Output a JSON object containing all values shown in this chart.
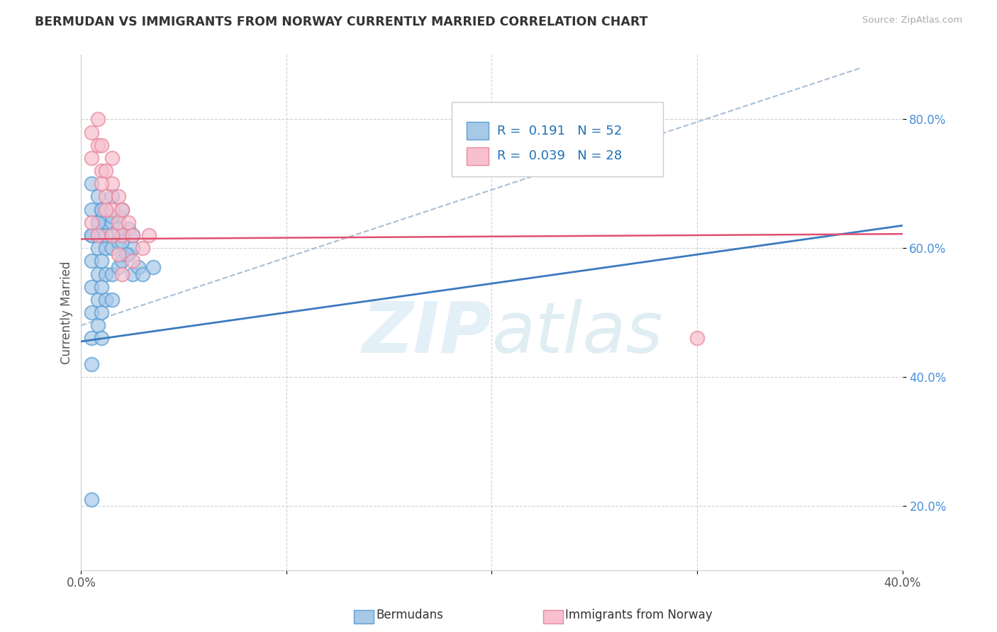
{
  "title": "BERMUDAN VS IMMIGRANTS FROM NORWAY CURRENTLY MARRIED CORRELATION CHART",
  "source": "Source: ZipAtlas.com",
  "ylabel": "Currently Married",
  "xlim": [
    0.0,
    0.4
  ],
  "ylim": [
    0.1,
    0.9
  ],
  "xticks": [
    0.0,
    0.1,
    0.2,
    0.3,
    0.4
  ],
  "xtick_labels": [
    "0.0%",
    "",
    "",
    "",
    "40.0%"
  ],
  "ytick_vals": [
    0.2,
    0.4,
    0.6,
    0.8
  ],
  "ytick_labels": [
    "20.0%",
    "40.0%",
    "60.0%",
    "80.0%"
  ],
  "blue_color": "#a8c8e8",
  "blue_edge_color": "#5a9fd4",
  "pink_color": "#f8c0ce",
  "pink_edge_color": "#e888a0",
  "blue_line_color": "#3a7abf",
  "pink_line_color": "#e05070",
  "dashed_line_color": "#a0b8d0",
  "legend_R1": "0.191",
  "legend_N1": "52",
  "legend_R2": "0.039",
  "legend_N2": "28",
  "blue_line_x0": 0.0,
  "blue_line_y0": 0.455,
  "blue_line_x1": 0.4,
  "blue_line_y1": 0.635,
  "pink_line_x0": 0.0,
  "pink_line_y0": 0.614,
  "pink_line_x1": 0.4,
  "pink_line_y1": 0.622,
  "dash_line_x0": 0.0,
  "dash_line_y0": 0.48,
  "dash_line_x1": 0.38,
  "dash_line_y1": 0.88,
  "blue_x": [
    0.005,
    0.005,
    0.005,
    0.005,
    0.005,
    0.005,
    0.008,
    0.008,
    0.008,
    0.008,
    0.008,
    0.01,
    0.01,
    0.01,
    0.01,
    0.01,
    0.01,
    0.012,
    0.012,
    0.012,
    0.012,
    0.015,
    0.015,
    0.015,
    0.015,
    0.015,
    0.018,
    0.018,
    0.018,
    0.02,
    0.02,
    0.02,
    0.023,
    0.023,
    0.025,
    0.025,
    0.028,
    0.03,
    0.035,
    0.005,
    0.005,
    0.005,
    0.008,
    0.008,
    0.01,
    0.012,
    0.015,
    0.018,
    0.02,
    0.022,
    0.025,
    0.005
  ],
  "blue_y": [
    0.62,
    0.58,
    0.54,
    0.5,
    0.46,
    0.42,
    0.64,
    0.6,
    0.56,
    0.52,
    0.48,
    0.66,
    0.62,
    0.58,
    0.54,
    0.5,
    0.46,
    0.64,
    0.6,
    0.56,
    0.52,
    0.68,
    0.64,
    0.6,
    0.56,
    0.52,
    0.65,
    0.61,
    0.57,
    0.66,
    0.62,
    0.58,
    0.63,
    0.59,
    0.6,
    0.56,
    0.57,
    0.56,
    0.57,
    0.7,
    0.66,
    0.62,
    0.68,
    0.64,
    0.66,
    0.62,
    0.65,
    0.63,
    0.61,
    0.59,
    0.62,
    0.21
  ],
  "pink_x": [
    0.005,
    0.005,
    0.008,
    0.008,
    0.01,
    0.01,
    0.012,
    0.012,
    0.015,
    0.015,
    0.015,
    0.018,
    0.018,
    0.02,
    0.02,
    0.023,
    0.025,
    0.025,
    0.03,
    0.033,
    0.005,
    0.008,
    0.01,
    0.012,
    0.015,
    0.018,
    0.02,
    0.3
  ],
  "pink_y": [
    0.78,
    0.74,
    0.8,
    0.76,
    0.76,
    0.72,
    0.72,
    0.68,
    0.74,
    0.7,
    0.66,
    0.68,
    0.64,
    0.66,
    0.62,
    0.64,
    0.62,
    0.58,
    0.6,
    0.62,
    0.64,
    0.62,
    0.7,
    0.66,
    0.62,
    0.59,
    0.56,
    0.46
  ]
}
